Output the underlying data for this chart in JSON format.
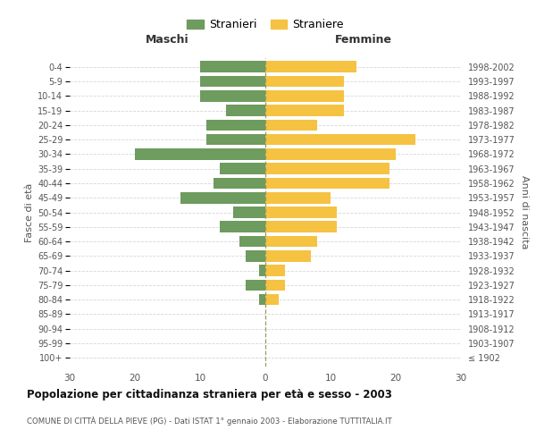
{
  "age_groups": [
    "100+",
    "95-99",
    "90-94",
    "85-89",
    "80-84",
    "75-79",
    "70-74",
    "65-69",
    "60-64",
    "55-59",
    "50-54",
    "45-49",
    "40-44",
    "35-39",
    "30-34",
    "25-29",
    "20-24",
    "15-19",
    "10-14",
    "5-9",
    "0-4"
  ],
  "birth_years": [
    "≤ 1902",
    "1903-1907",
    "1908-1912",
    "1913-1917",
    "1918-1922",
    "1923-1927",
    "1928-1932",
    "1933-1937",
    "1938-1942",
    "1943-1947",
    "1948-1952",
    "1953-1957",
    "1958-1962",
    "1963-1967",
    "1968-1972",
    "1973-1977",
    "1978-1982",
    "1983-1987",
    "1988-1992",
    "1993-1997",
    "1998-2002"
  ],
  "males": [
    0,
    0,
    0,
    0,
    1,
    3,
    1,
    3,
    4,
    7,
    5,
    13,
    8,
    7,
    20,
    9,
    9,
    6,
    10,
    10,
    10
  ],
  "females": [
    0,
    0,
    0,
    0,
    2,
    3,
    3,
    7,
    8,
    11,
    11,
    10,
    19,
    19,
    20,
    23,
    8,
    12,
    12,
    12,
    14
  ],
  "male_color": "#6e9b5e",
  "female_color": "#f5c242",
  "title": "Popolazione per cittadinanza straniera per età e sesso - 2003",
  "subtitle": "COMUNE DI CITTÀ DELLA PIEVE (PG) - Dati ISTAT 1° gennaio 2003 - Elaborazione TUTTITALIA.IT",
  "xlabel_left": "Maschi",
  "xlabel_right": "Femmine",
  "ylabel_left": "Fasce di età",
  "ylabel_right": "Anni di nascita",
  "legend_male": "Stranieri",
  "legend_female": "Straniere",
  "xlim": 30,
  "background_color": "#ffffff",
  "grid_color": "#cccccc"
}
